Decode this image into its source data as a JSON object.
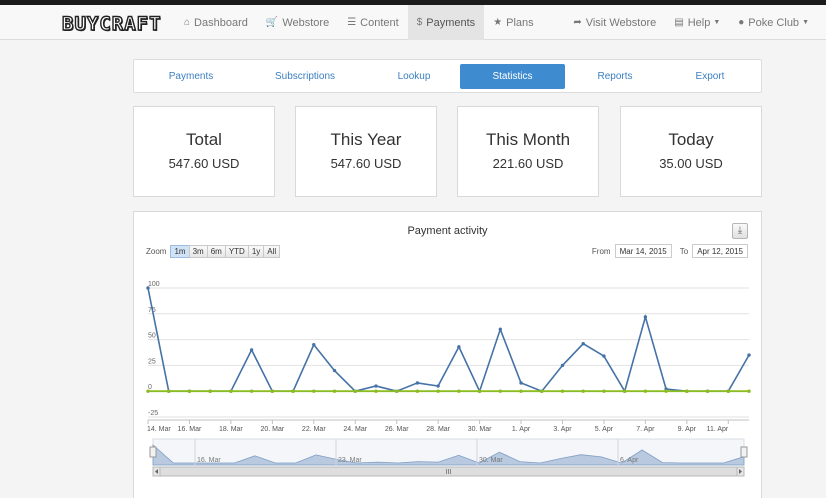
{
  "navbar": {
    "logo": "BUYCRAFT",
    "left": [
      {
        "icon": "home-icon",
        "glyph": "⌂",
        "label": "Dashboard",
        "active": false
      },
      {
        "icon": "cart-icon",
        "glyph": "🛒",
        "label": "Webstore",
        "active": false
      },
      {
        "icon": "list-icon",
        "glyph": "☰",
        "label": "Content",
        "active": false
      },
      {
        "icon": "dollar-icon",
        "glyph": "$",
        "label": "Payments",
        "active": true
      },
      {
        "icon": "star-icon",
        "glyph": "★",
        "label": "Plans",
        "active": false
      }
    ],
    "right": [
      {
        "icon": "share-icon",
        "glyph": "➦",
        "label": "Visit Webstore",
        "caret": false
      },
      {
        "icon": "book-icon",
        "glyph": "▤",
        "label": "Help",
        "caret": true
      },
      {
        "icon": "user-icon",
        "glyph": "●",
        "label": "Poke Club",
        "caret": true
      }
    ]
  },
  "subnav": {
    "tabs": [
      "Payments",
      "Subscriptions",
      "Lookup",
      "Statistics",
      "Reports",
      "Export"
    ],
    "active_index": 3
  },
  "stats": [
    {
      "title": "Total",
      "value": "547.60 USD"
    },
    {
      "title": "This Year",
      "value": "547.60 USD"
    },
    {
      "title": "This Month",
      "value": "221.60 USD"
    },
    {
      "title": "Today",
      "value": "35.00 USD"
    }
  ],
  "chart_panel": {
    "download_icon": "download-icon",
    "zoom_label": "Zoom",
    "zoom_buttons": [
      "1m",
      "3m",
      "6m",
      "YTD",
      "1y",
      "All"
    ],
    "zoom_active": "1m",
    "from_label": "From",
    "from_value": "Mar 14, 2015",
    "to_label": "To",
    "to_value": "Apr 12, 2015"
  },
  "chart_data": {
    "type": "line",
    "title": "Payment activity",
    "ylim": [
      -25,
      100
    ],
    "yticks": [
      "100",
      "75",
      "50",
      "25",
      "0",
      "-25"
    ],
    "xticks": [
      "14. Mar",
      "16. Mar",
      "18. Mar",
      "20. Mar",
      "22. Mar",
      "24. Mar",
      "26. Mar",
      "28. Mar",
      "30. Mar",
      "1. Apr",
      "3. Apr",
      "5. Apr",
      "7. Apr",
      "9. Apr",
      "11. Apr"
    ],
    "navigator_labels": [
      "16. Mar",
      "23. Mar",
      "30. Mar",
      "6. Apr"
    ],
    "grid": true,
    "colors": {
      "series": "#4572a7",
      "baseline": "#8bbc21"
    },
    "series": [
      {
        "values": [
          100,
          0,
          0,
          0,
          0,
          40,
          0,
          0,
          45,
          20,
          0,
          5,
          0,
          8,
          5,
          43,
          0,
          60,
          8,
          0,
          25,
          46,
          34,
          0,
          72,
          2,
          0,
          0,
          0,
          35
        ]
      },
      {
        "values": [
          0,
          0,
          0,
          0,
          0,
          0,
          0,
          0,
          0,
          0,
          0,
          0,
          0,
          0,
          0,
          0,
          0,
          0,
          0,
          0,
          0,
          0,
          0,
          0,
          0,
          0,
          0,
          0,
          0,
          0
        ]
      }
    ]
  }
}
